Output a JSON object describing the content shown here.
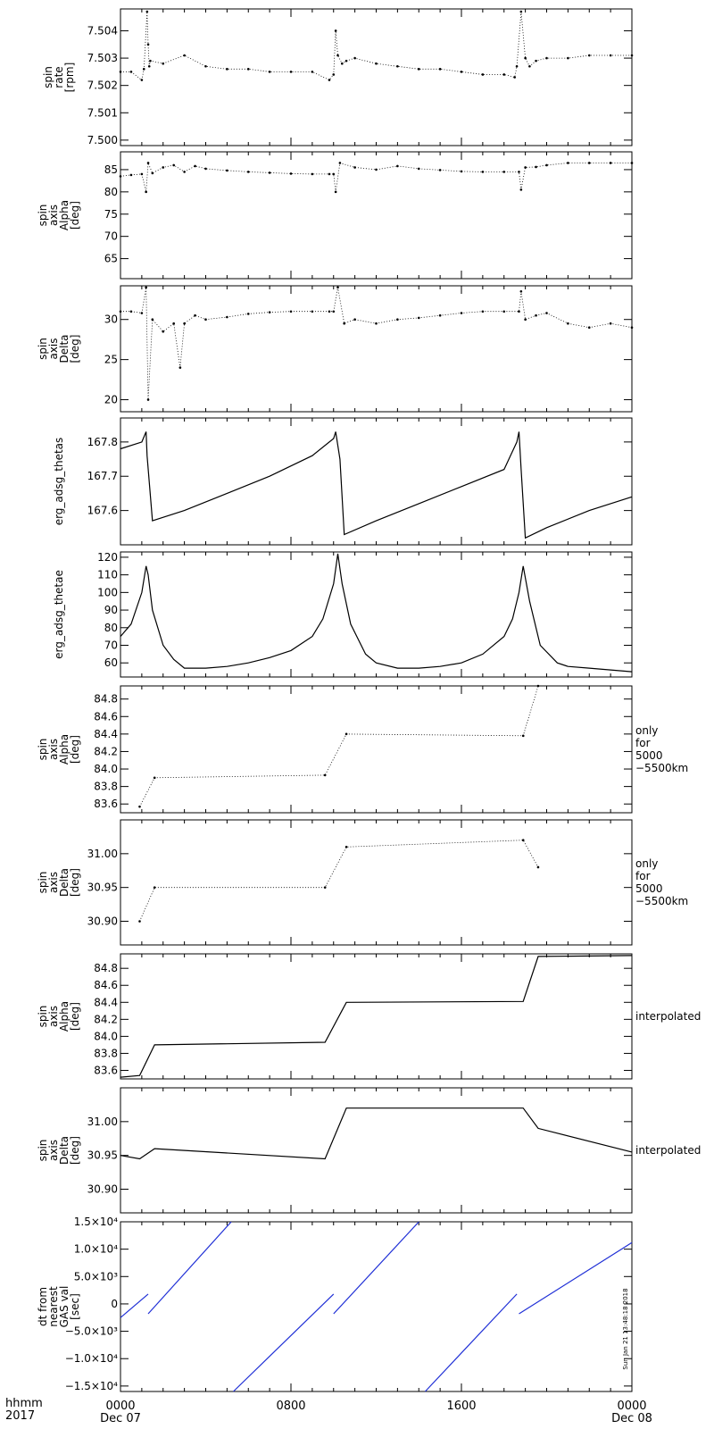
{
  "time_axis": {
    "row1": "hhmm",
    "row2": "2017",
    "ticks": [
      {
        "t": 0,
        "time": "0000",
        "date": "Dec 07"
      },
      {
        "t": 8,
        "time": "0800",
        "date": ""
      },
      {
        "t": 16,
        "time": "1600",
        "date": ""
      },
      {
        "t": 24,
        "time": "0000",
        "date": "Dec 08"
      }
    ],
    "xlim": [
      0,
      24
    ]
  },
  "timestamp": "Sun Jan 21 13:48:18 2018",
  "chart_data": [
    {
      "type": "scatter",
      "ylabel": [
        "spin",
        "rate",
        "[rpm]"
      ],
      "ylim": [
        7.4998,
        7.5048
      ],
      "yticks": [
        "7.500",
        "7.501",
        "7.502",
        "7.503",
        "7.504"
      ],
      "ytick_values": [
        7.5,
        7.501,
        7.502,
        7.503,
        7.504
      ],
      "series": [
        {
          "x": [
            0,
            0.5,
            1.0,
            1.1,
            1.25,
            1.3,
            1.35,
            1.4,
            2,
            3,
            4,
            5,
            6,
            7,
            8,
            9,
            9.8,
            10,
            10.1,
            10.2,
            10.4,
            10.6,
            11,
            12,
            13,
            14,
            15,
            16,
            17,
            18,
            18.5,
            18.6,
            18.8,
            19.0,
            19.2,
            19.5,
            20,
            21,
            22,
            23,
            24
          ],
          "y": [
            7.5025,
            7.5025,
            7.5022,
            7.5026,
            7.5047,
            7.5035,
            7.5027,
            7.5029,
            7.5028,
            7.5031,
            7.5027,
            7.5026,
            7.5026,
            7.5025,
            7.5025,
            7.5025,
            7.5022,
            7.5024,
            7.504,
            7.5031,
            7.5028,
            7.5029,
            7.503,
            7.5028,
            7.5027,
            7.5026,
            7.5026,
            7.5025,
            7.5024,
            7.5024,
            7.5023,
            7.5027,
            7.5047,
            7.503,
            7.5027,
            7.5029,
            7.503,
            7.503,
            7.5031,
            7.5031,
            7.5031
          ]
        }
      ]
    },
    {
      "type": "scatter",
      "ylabel": [
        "spin",
        "axis",
        "Alpha",
        "[deg]"
      ],
      "ylim": [
        60.5,
        89
      ],
      "yticks": [
        "65",
        "70",
        "75",
        "80",
        "85"
      ],
      "ytick_values": [
        65,
        70,
        75,
        80,
        85
      ],
      "series": [
        {
          "x": [
            0,
            0.5,
            1.0,
            1.2,
            1.3,
            1.5,
            2,
            2.5,
            3,
            3.5,
            4,
            5,
            6,
            7,
            8,
            9,
            9.8,
            10,
            10.1,
            10.3,
            11,
            12,
            13,
            14,
            15,
            16,
            17,
            18,
            18.7,
            18.8,
            19.0,
            19.5,
            20,
            21,
            22,
            23,
            24
          ],
          "y": [
            83.5,
            83.8,
            84.0,
            80.0,
            86.5,
            84.2,
            85.5,
            86.0,
            84.5,
            85.8,
            85.2,
            84.8,
            84.5,
            84.3,
            84.1,
            84.0,
            84.0,
            84.0,
            80.0,
            86.5,
            85.5,
            85.0,
            85.8,
            85.2,
            84.9,
            84.6,
            84.5,
            84.5,
            84.5,
            80.5,
            85.5,
            85.6,
            86.0,
            86.5,
            86.5,
            86.5,
            86.5
          ]
        }
      ]
    },
    {
      "type": "scatter",
      "ylabel": [
        "spin",
        "axis",
        "Delta",
        "[deg]"
      ],
      "ylim": [
        18.5,
        34.2
      ],
      "yticks": [
        "20",
        "25",
        "30"
      ],
      "ytick_values": [
        20,
        25,
        30
      ],
      "series": [
        {
          "x": [
            0,
            0.5,
            1.0,
            1.2,
            1.3,
            1.5,
            2,
            2.5,
            2.8,
            3,
            3.5,
            4,
            5,
            6,
            7,
            8,
            9,
            9.8,
            10,
            10.2,
            10.5,
            11,
            12,
            13,
            14,
            15,
            16,
            17,
            18,
            18.7,
            18.8,
            19.0,
            19.5,
            20,
            21,
            22,
            23,
            24
          ],
          "y": [
            31.0,
            31.0,
            30.8,
            34.0,
            20.0,
            30.0,
            28.5,
            29.5,
            24.0,
            29.5,
            30.5,
            30.0,
            30.3,
            30.7,
            30.9,
            31.0,
            31.0,
            31.0,
            31.0,
            34.0,
            29.5,
            30.0,
            29.5,
            30.0,
            30.2,
            30.5,
            30.8,
            31.0,
            31.0,
            31.0,
            33.5,
            30.0,
            30.5,
            30.8,
            29.5,
            29.0,
            29.5,
            29.0
          ]
        }
      ]
    },
    {
      "type": "line",
      "ylabel": [
        "erg_adsg_thetas"
      ],
      "ylim": [
        167.5,
        167.87
      ],
      "yticks": [
        "167.6",
        "167.7",
        "167.8"
      ],
      "ytick_values": [
        167.6,
        167.7,
        167.8
      ],
      "series": [
        {
          "x": [
            0,
            1.0,
            1.2,
            1.25,
            1.5,
            3,
            5,
            7,
            9,
            10,
            10.1,
            10.3,
            10.5,
            12,
            14,
            16,
            18,
            18.6,
            18.7,
            18.8,
            19.0,
            20,
            22,
            24
          ],
          "y": [
            167.78,
            167.8,
            167.83,
            167.76,
            167.57,
            167.6,
            167.65,
            167.7,
            167.76,
            167.81,
            167.83,
            167.75,
            167.53,
            167.57,
            167.62,
            167.67,
            167.72,
            167.8,
            167.83,
            167.72,
            167.52,
            167.55,
            167.6,
            167.64
          ]
        }
      ]
    },
    {
      "type": "line",
      "ylabel": [
        "erg_adsg_thetae"
      ],
      "ylim": [
        52,
        123
      ],
      "yticks": [
        "60",
        "70",
        "80",
        "90",
        "100",
        "110",
        "120"
      ],
      "ytick_values": [
        60,
        70,
        80,
        90,
        100,
        110,
        120
      ],
      "series": [
        {
          "x": [
            0,
            0.5,
            1.0,
            1.2,
            1.3,
            1.5,
            2,
            2.5,
            3,
            4,
            5,
            6,
            7,
            8,
            9,
            9.5,
            10,
            10.2,
            10.4,
            10.8,
            11.5,
            12,
            13,
            14,
            15,
            16,
            17,
            18,
            18.4,
            18.7,
            18.9,
            19.2,
            19.7,
            20.5,
            21,
            22,
            23,
            24
          ],
          "y": [
            75,
            82,
            100,
            115,
            110,
            90,
            70,
            62,
            57,
            57,
            58,
            60,
            63,
            67,
            75,
            85,
            105,
            122,
            105,
            82,
            65,
            60,
            57,
            57,
            58,
            60,
            65,
            75,
            85,
            100,
            115,
            95,
            70,
            60,
            58,
            57,
            56,
            55
          ]
        }
      ]
    },
    {
      "type": "scatter",
      "ylabel": [
        "spin",
        "axis",
        "Alpha",
        "[deg]"
      ],
      "ylim": [
        83.5,
        84.95
      ],
      "yticks": [
        "83.6",
        "83.8",
        "84.0",
        "84.2",
        "84.4",
        "84.6",
        "84.8"
      ],
      "ytick_values": [
        83.6,
        83.8,
        84.0,
        84.2,
        84.4,
        84.6,
        84.8
      ],
      "note": [
        "only",
        "for",
        "5000",
        "−5500km"
      ],
      "series": [
        {
          "x": [
            0.9,
            1.6,
            9.6,
            10.6,
            18.9,
            19.6
          ],
          "y": [
            83.57,
            83.9,
            83.93,
            84.4,
            84.38,
            84.95
          ]
        }
      ]
    },
    {
      "type": "scatter",
      "ylabel": [
        "spin",
        "axis",
        "Delta",
        "[deg]"
      ],
      "ylim": [
        30.865,
        31.05
      ],
      "yticks": [
        "30.90",
        "30.95",
        "31.00"
      ],
      "ytick_values": [
        30.9,
        30.95,
        31.0
      ],
      "note": [
        "only",
        "for",
        "5000",
        "−5500km"
      ],
      "series": [
        {
          "x": [
            0.9,
            1.6,
            9.6,
            10.6,
            18.9,
            19.6
          ],
          "y": [
            30.9,
            30.95,
            30.95,
            31.01,
            31.02,
            30.98
          ]
        }
      ]
    },
    {
      "type": "line",
      "ylabel": [
        "spin",
        "axis",
        "Alpha",
        "[deg]"
      ],
      "ylim": [
        83.5,
        84.97
      ],
      "yticks": [
        "83.6",
        "83.8",
        "84.0",
        "84.2",
        "84.4",
        "84.6",
        "84.8"
      ],
      "ytick_values": [
        83.6,
        83.8,
        84.0,
        84.2,
        84.4,
        84.6,
        84.8
      ],
      "note": [
        "interpolated"
      ],
      "series": [
        {
          "x": [
            0,
            0.9,
            1.6,
            9.6,
            10.6,
            18.9,
            19.6,
            24
          ],
          "y": [
            83.52,
            83.54,
            83.9,
            83.93,
            84.4,
            84.41,
            84.94,
            84.95
          ]
        }
      ]
    },
    {
      "type": "line",
      "ylabel": [
        "spin",
        "axis",
        "Delta",
        "[deg]"
      ],
      "ylim": [
        30.865,
        31.05
      ],
      "yticks": [
        "30.90",
        "30.95",
        "31.00"
      ],
      "ytick_values": [
        30.9,
        30.95,
        31.0
      ],
      "note": [
        "interpolated"
      ],
      "series": [
        {
          "x": [
            0,
            0.9,
            1.6,
            9.6,
            10.6,
            18.9,
            19.6,
            24
          ],
          "y": [
            30.95,
            30.945,
            30.96,
            30.945,
            31.02,
            31.02,
            30.99,
            30.955
          ]
        }
      ]
    },
    {
      "type": "line",
      "ylabel": [
        "dt from",
        "nearest",
        "GAS val",
        "[sec]"
      ],
      "ylim": [
        -16000,
        15000
      ],
      "yticks": [
        "−1.5×10⁴",
        "−1.0×10⁴",
        "−5.0×10³",
        "0",
        "5.0×10³",
        "1.0×10⁴",
        "1.5×10⁴"
      ],
      "ytick_values": [
        -15000,
        -10000,
        -5000,
        0,
        5000,
        10000,
        15000
      ],
      "color": "#1f2fd6",
      "series": [
        {
          "x": [
            0,
            1.3
          ],
          "y": [
            -2500,
            1800
          ]
        },
        {
          "x": [
            1.3,
            5.2
          ],
          "y": [
            -1800,
            15000
          ]
        },
        {
          "x": [
            5.3,
            10.0
          ],
          "y": [
            -16000,
            1800
          ]
        },
        {
          "x": [
            10.0,
            14.0
          ],
          "y": [
            -1800,
            15000
          ]
        },
        {
          "x": [
            14.3,
            18.6
          ],
          "y": [
            -16000,
            1800
          ]
        },
        {
          "x": [
            18.7,
            24
          ],
          "y": [
            -1800,
            11200
          ]
        }
      ]
    }
  ]
}
